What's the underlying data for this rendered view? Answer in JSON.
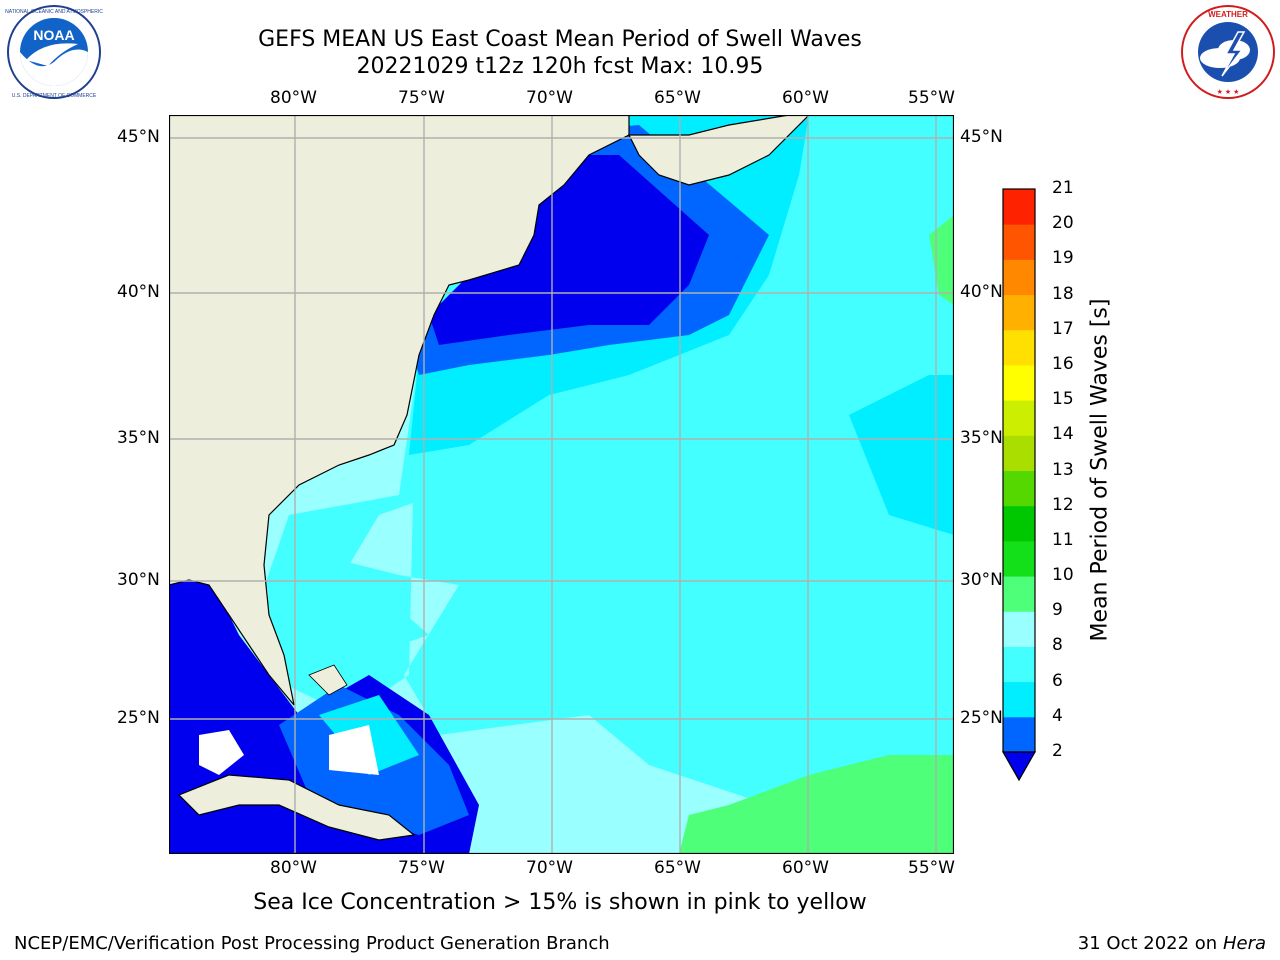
{
  "title": {
    "line1": "GEFS MEAN US East Coast Mean Period of Swell Waves",
    "line2": "20221029 t12z 120h fcst   Max: 10.95"
  },
  "logos": {
    "left": {
      "name": "NOAA",
      "ring_text": "NATIONAL OCEANIC AND ATMOSPHERIC ADMINISTRATION · U.S. DEPARTMENT OF COMMERCE"
    },
    "right": {
      "ring_text": "NATIONAL WEATHER SERVICE"
    }
  },
  "map": {
    "lon_ticks": [
      "80°W",
      "75°W",
      "70°W",
      "65°W",
      "60°W",
      "55°W"
    ],
    "lat_ticks": [
      "45°N",
      "40°N",
      "35°N",
      "30°N",
      "25°N"
    ],
    "lon_range": [
      -85,
      -54.5
    ],
    "lat_range": [
      20,
      45.8
    ],
    "land_color": "#eeeedc",
    "grid": true
  },
  "colorbar": {
    "title": "Mean Period of Swell Waves [s]",
    "levels": [
      "2",
      "4",
      "6",
      "8",
      "9",
      "10",
      "11",
      "12",
      "13",
      "14",
      "15",
      "16",
      "17",
      "18",
      "19",
      "20",
      "21"
    ],
    "colors": [
      "#0066ff",
      "#00eeff",
      "#44ffff",
      "#99ffff",
      "#4eff7a",
      "#14e01a",
      "#00c800",
      "#55d800",
      "#aadd00",
      "#ccee00",
      "#ffff00",
      "#ffe000",
      "#ffb000",
      "#ff8800",
      "#ff5500",
      "#ff2200"
    ],
    "extend_color": "#0000ee"
  },
  "subtitle": "Sea Ice Concentration > 15% is shown in pink to yellow",
  "footer": {
    "credit": "NCEP/EMC/Verification Post Processing Product Generation Branch",
    "date": "31 Oct 2022 on",
    "host": "Hera"
  }
}
